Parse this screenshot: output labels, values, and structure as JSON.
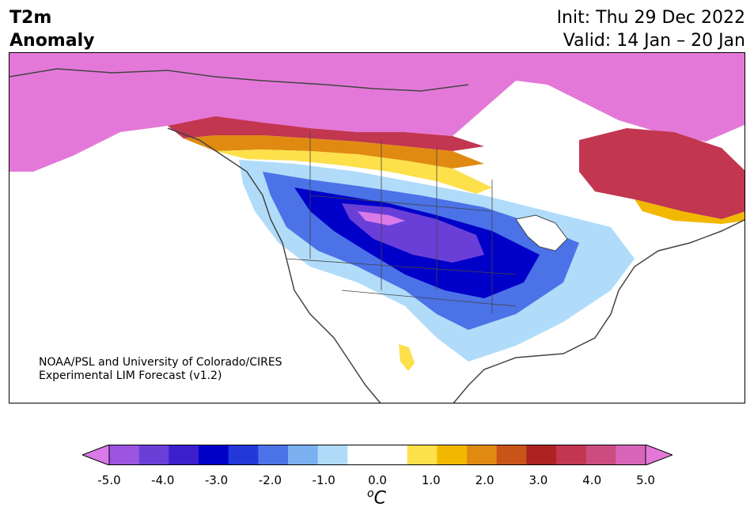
{
  "title": {
    "line1": "T2m",
    "line2": "Anomaly"
  },
  "dates": {
    "init": "Init: Thu 29 Dec 2022",
    "valid": "Valid: 14 Jan – 20 Jan"
  },
  "credit": {
    "line1": "NOAA/PSL and University of Colorado/CIRES",
    "line2": "Experimental LIM Forecast (v1.2)"
  },
  "colorbar": {
    "unit_superscript": "o",
    "unit": "C",
    "tick_labels": [
      "-5.0",
      "-4.0",
      "-3.0",
      "-2.0",
      "-1.0",
      "0.0",
      "1.0",
      "2.0",
      "3.0",
      "4.0",
      "5.0"
    ],
    "colors": [
      "#d97ae8",
      "#9b55e0",
      "#6a3fd8",
      "#3b1fcc",
      "#0000c8",
      "#2238d8",
      "#4c72e8",
      "#7ab0f0",
      "#b0dcfa",
      "#ffffff",
      "#ffffff",
      "#fde04a",
      "#f2b800",
      "#e08a12",
      "#c85418",
      "#ae2222",
      "#c23650",
      "#cc4c80",
      "#d866b8",
      "#e478d8"
    ]
  },
  "map_region": "North America",
  "colors": {
    "warm_extreme": "#e478d8",
    "cold_extreme": "#d97ae8",
    "coast": "#444444"
  }
}
